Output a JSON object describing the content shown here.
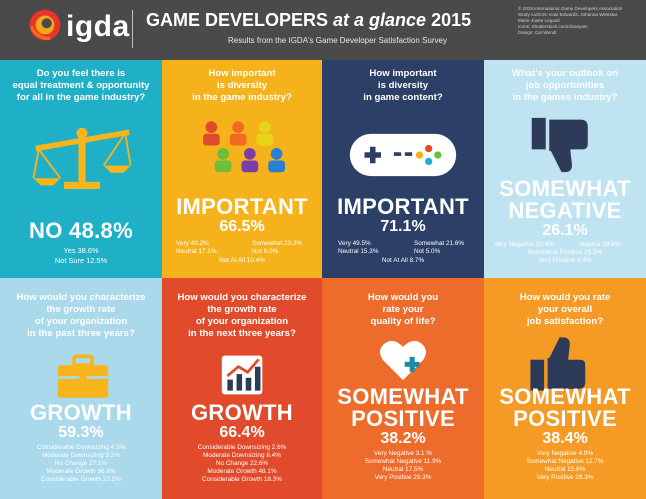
{
  "header": {
    "logo_text": "igda",
    "title_main": "GAME DEVELOPERS ",
    "title_italic": "at a glance ",
    "title_year": "2015",
    "subtitle": "Results from the IGDA's Game Developer Satisfaction Survey",
    "credits": [
      "© 2015 International Game Developers Association",
      "Study Authors: Kate Edwards, Johanna Weststar,",
      "Marie-Josée Legault",
      "Icons: Shutterstock.com/Aboeyam",
      "Design: Cat Wendt"
    ]
  },
  "panels": [
    {
      "question": [
        "Do you feel there is",
        "equal treatment & opportunity",
        "for all in the game industry?"
      ],
      "headline": "NO 48.8%",
      "rows": [
        "Yes 38.6%",
        "Not Sure 12.5%"
      ]
    },
    {
      "question": [
        "How important",
        "is diversity",
        "in the game industry?"
      ],
      "headline": "IMPORTANT",
      "pct": "66.5%",
      "left": [
        "Very 43.2%",
        "Neutral 17.1%"
      ],
      "right": [
        "Somewhat 23.3%",
        "Not 6.0%"
      ],
      "last": "Not At All 10.4%"
    },
    {
      "question": [
        "How important",
        "is diversity",
        "in game content?"
      ],
      "headline": "IMPORTANT",
      "pct": "71.1%",
      "left": [
        "Very 49.5%",
        "Neutral 15.3%"
      ],
      "right": [
        "Somewhat 21.6%",
        "Not 5.0%"
      ],
      "last": "Not At All 8.7%"
    },
    {
      "question": [
        "What's your outlook on",
        "job opportunities",
        "in the games industry?"
      ],
      "headline": [
        "SOMEWHAT",
        "NEGATIVE"
      ],
      "pct": "26.1%",
      "left": [
        "Very Negative 10.4%"
      ],
      "right": [
        "Neutral 29.9%"
      ],
      "rows": [
        "Somewhat Positive 25.3%",
        "Very Positive 8.4%"
      ]
    },
    {
      "question": [
        "How would you characterize",
        "the growth rate",
        "of your organization",
        "in the past three years?"
      ],
      "headline": "GROWTH",
      "pct": "59.3%",
      "rows": [
        "Considerable Downsizing 4.5%",
        "Moderate Downsizing 9.2%",
        "No Change 27.1%",
        "Moderate Growth 36.8%",
        "Considerable Growth 22.5%"
      ]
    },
    {
      "question": [
        "How would you characterize",
        "the growth rate",
        "of your  organization",
        "in the next three years?"
      ],
      "headline": "GROWTH",
      "pct": "66.4%",
      "rows": [
        "Considerable Downsizing 2.6%",
        "Moderate Downsizing 8.4%",
        "No Change 22.6%",
        "Moderate Growth 48.1%",
        "Considerable Growth 18.3%"
      ]
    },
    {
      "question": [
        "How would you",
        "rate your",
        "quality of life?"
      ],
      "headline": [
        "SOMEWHAT",
        "POSITIVE"
      ],
      "pct": "38.2%",
      "rows": [
        "Very Negative 3.1 %",
        "Somewhat Negative 11.9%",
        "Neutral 17.5%",
        "Very Positive 29.3%"
      ]
    },
    {
      "question": [
        "How would you rate",
        "your overall",
        "job satisfaction?"
      ],
      "headline": [
        "SOMEWHAT",
        "POSITIVE"
      ],
      "pct": "38.4%",
      "rows": [
        "Very Negative 4.9%",
        "Somewhat Negative 12.7%",
        "Neutral 15.6%",
        "Very Positive 28.3%"
      ]
    }
  ],
  "colors": {
    "header": "#4a4a4a",
    "teal": "#1fb0c8",
    "yellow": "#f6b21a",
    "navy": "#2b3f67",
    "lightblue": "#bfe3f0",
    "paleblue": "#a9d9ea",
    "red": "#e14b2c",
    "orange_red": "#ee6c2b",
    "orange": "#f59b25",
    "icon_yellow": "#f8b41b",
    "icon_white": "#ffffff",
    "icon_dark": "#2d3b59",
    "icon_teal": "#1a8aa6"
  },
  "icons": [
    "balance-scale-icon",
    "diverse-people-icon",
    "game-controller-icon",
    "thumbs-down-icon",
    "briefcase-icon",
    "growth-chart-icon",
    "heart-plus-icon",
    "thumbs-up-icon"
  ]
}
